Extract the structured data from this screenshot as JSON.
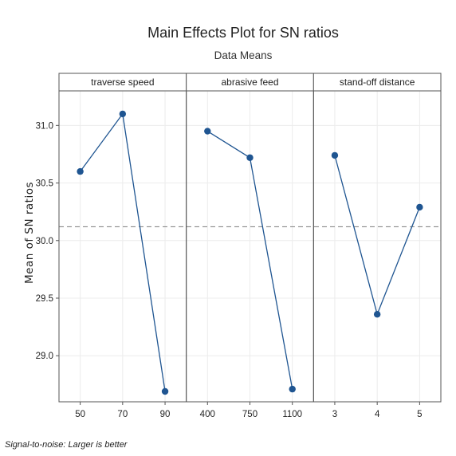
{
  "chart_data": {
    "type": "line",
    "title": "Main Effects Plot for SN ratios",
    "subtitle": "Data Means",
    "ylabel": "Mean of SN ratios",
    "footnote": "Signal-to-noise: Larger is better",
    "ylim": [
      28.6,
      31.3
    ],
    "yticks": [
      "29.0",
      "29.5",
      "30.0",
      "30.5",
      "31.0"
    ],
    "reference_line": 30.12,
    "grid": true,
    "color": "#1f5591",
    "panels": [
      {
        "name": "traverse speed",
        "categories": [
          "50",
          "70",
          "90"
        ],
        "values": [
          30.6,
          31.1,
          28.69
        ]
      },
      {
        "name": "abrasive feed",
        "categories": [
          "400",
          "750",
          "1100"
        ],
        "values": [
          30.95,
          30.72,
          28.71
        ]
      },
      {
        "name": "stand-off distance",
        "categories": [
          "3",
          "4",
          "5"
        ],
        "values": [
          30.74,
          29.36,
          30.29
        ]
      }
    ]
  }
}
